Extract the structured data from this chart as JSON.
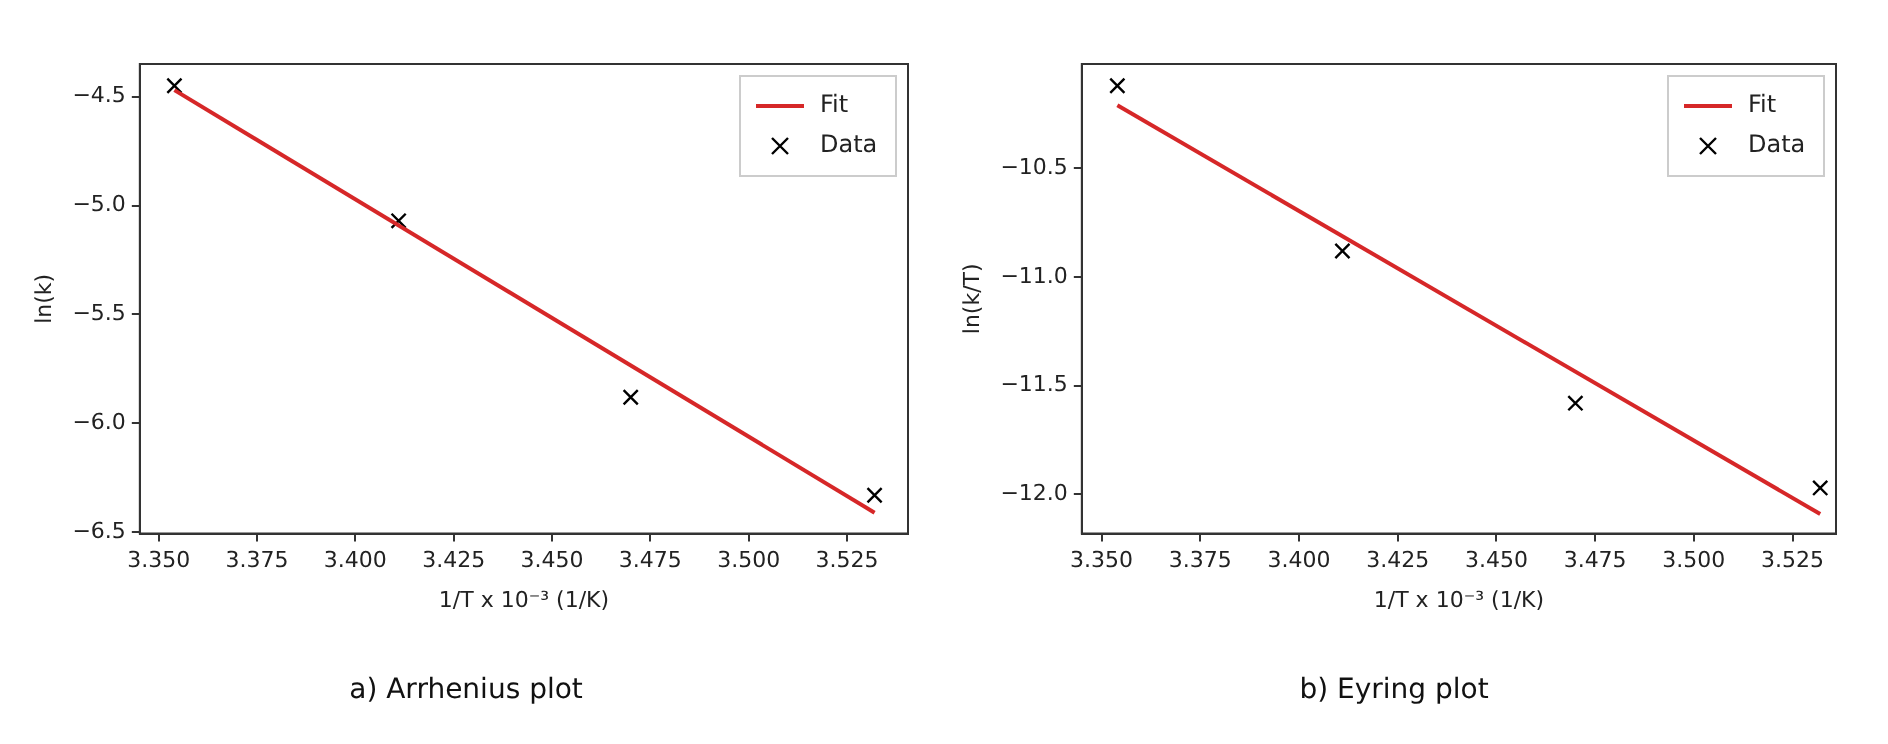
{
  "chart_data": [
    {
      "type": "scatter",
      "title": "a) Arrhenius plot",
      "xlabel": "1/T x 10⁻³ (1/K)",
      "ylabel": "ln(k)",
      "xlim": [
        3.3452,
        3.5405
      ],
      "ylim": [
        -6.506,
        -4.35
      ],
      "xticks": [
        {
          "value": 3.35,
          "label": "3.350"
        },
        {
          "value": 3.375,
          "label": "3.375"
        },
        {
          "value": 3.4,
          "label": "3.400"
        },
        {
          "value": 3.425,
          "label": "3.425"
        },
        {
          "value": 3.45,
          "label": "3.450"
        },
        {
          "value": 3.475,
          "label": "3.475"
        },
        {
          "value": 3.5,
          "label": "3.500"
        },
        {
          "value": 3.525,
          "label": "3.525"
        }
      ],
      "yticks": [
        {
          "value": -6.5,
          "label": "−6.5"
        },
        {
          "value": -6,
          "label": "−6.0"
        },
        {
          "value": -5.5,
          "label": "−5.5"
        },
        {
          "value": -5,
          "label": "−5.0"
        },
        {
          "value": -4.5,
          "label": "−4.5"
        }
      ],
      "grid": false,
      "legend": "top right",
      "series": [
        {
          "name": "Fit",
          "type": "line",
          "color": "#d62728",
          "x": [
            3.354,
            3.532
          ],
          "values": [
            -4.47,
            -6.41
          ]
        },
        {
          "name": "Data",
          "type": "scatter",
          "color": "#000000",
          "marker": "cross",
          "x": [
            3.354,
            3.411,
            3.47,
            3.532
          ],
          "values": [
            -4.45,
            -5.07,
            -5.88,
            -6.33
          ]
        }
      ]
    },
    {
      "type": "scatter",
      "title": "b) Eyring plot",
      "xlabel": "1/T x 10⁻³ (1/K)",
      "ylabel": "ln(k/T)",
      "xlim": [
        3.345,
        3.536
      ],
      "ylim": [
        -12.18,
        -10.02
      ],
      "xticks": [
        {
          "value": 3.35,
          "label": "3.350"
        },
        {
          "value": 3.375,
          "label": "3.375"
        },
        {
          "value": 3.4,
          "label": "3.400"
        },
        {
          "value": 3.425,
          "label": "3.425"
        },
        {
          "value": 3.45,
          "label": "3.450"
        },
        {
          "value": 3.475,
          "label": "3.475"
        },
        {
          "value": 3.5,
          "label": "3.500"
        },
        {
          "value": 3.525,
          "label": "3.525"
        }
      ],
      "yticks": [
        {
          "value": -12,
          "label": "−12.0"
        },
        {
          "value": -11.5,
          "label": "−11.5"
        },
        {
          "value": -11,
          "label": "−11.0"
        },
        {
          "value": -10.5,
          "label": "−10.5"
        }
      ],
      "grid": false,
      "legend": "top right",
      "series": [
        {
          "name": "Fit",
          "type": "line",
          "color": "#d62728",
          "x": [
            3.354,
            3.532
          ],
          "values": [
            -10.21,
            -12.09
          ]
        },
        {
          "name": "Data",
          "type": "scatter",
          "color": "#000000",
          "marker": "cross",
          "x": [
            3.354,
            3.411,
            3.47,
            3.532
          ],
          "values": [
            -10.12,
            -10.88,
            -11.58,
            -11.97
          ]
        }
      ]
    }
  ]
}
